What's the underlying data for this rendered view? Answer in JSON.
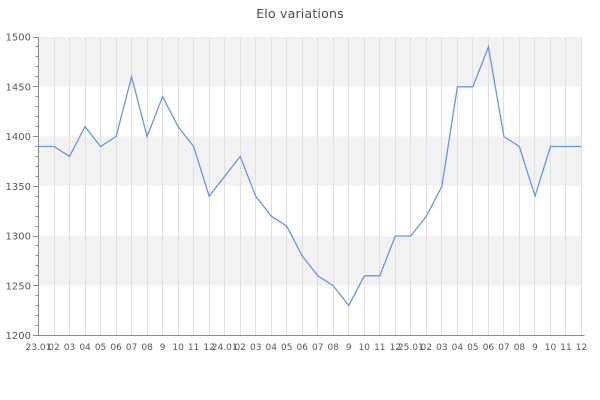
{
  "chart_data": {
    "type": "line",
    "title": "Elo variations",
    "x_labels": [
      "23.01",
      "02",
      "03",
      "04",
      "05",
      "06",
      "07",
      "08",
      "9",
      "10",
      "11",
      "12",
      "24.01",
      "02",
      "03",
      "04",
      "05",
      "06",
      "07",
      "08",
      "9",
      "10",
      "11",
      "12",
      "25.01",
      "02",
      "03",
      "04",
      "05",
      "06",
      "07",
      "08",
      "9",
      "10",
      "11",
      "12"
    ],
    "values": [
      1390,
      1390,
      1380,
      1410,
      1390,
      1400,
      1460,
      1400,
      1440,
      1410,
      1390,
      1340,
      1360,
      1380,
      1340,
      1320,
      1310,
      1280,
      1260,
      1250,
      1230,
      1260,
      1260,
      1300,
      1300,
      1320,
      1350,
      1450,
      1450,
      1490,
      1400,
      1390,
      1340,
      1390,
      1390,
      1390
    ],
    "ylim": [
      1200,
      1500
    ],
    "y_ticks": [
      1200,
      1250,
      1300,
      1350,
      1400,
      1450,
      1500
    ],
    "y_minor_step": 10,
    "grid": "on",
    "legend": "none",
    "colors": {
      "line": "#6C94E4",
      "band": "#F2F2F2",
      "band_alt": "#FFFFFF",
      "gridline": "#E0E0E0",
      "axis": "#8C8C8C",
      "tick_label": "#595959",
      "title": "#4D4D4D"
    }
  }
}
